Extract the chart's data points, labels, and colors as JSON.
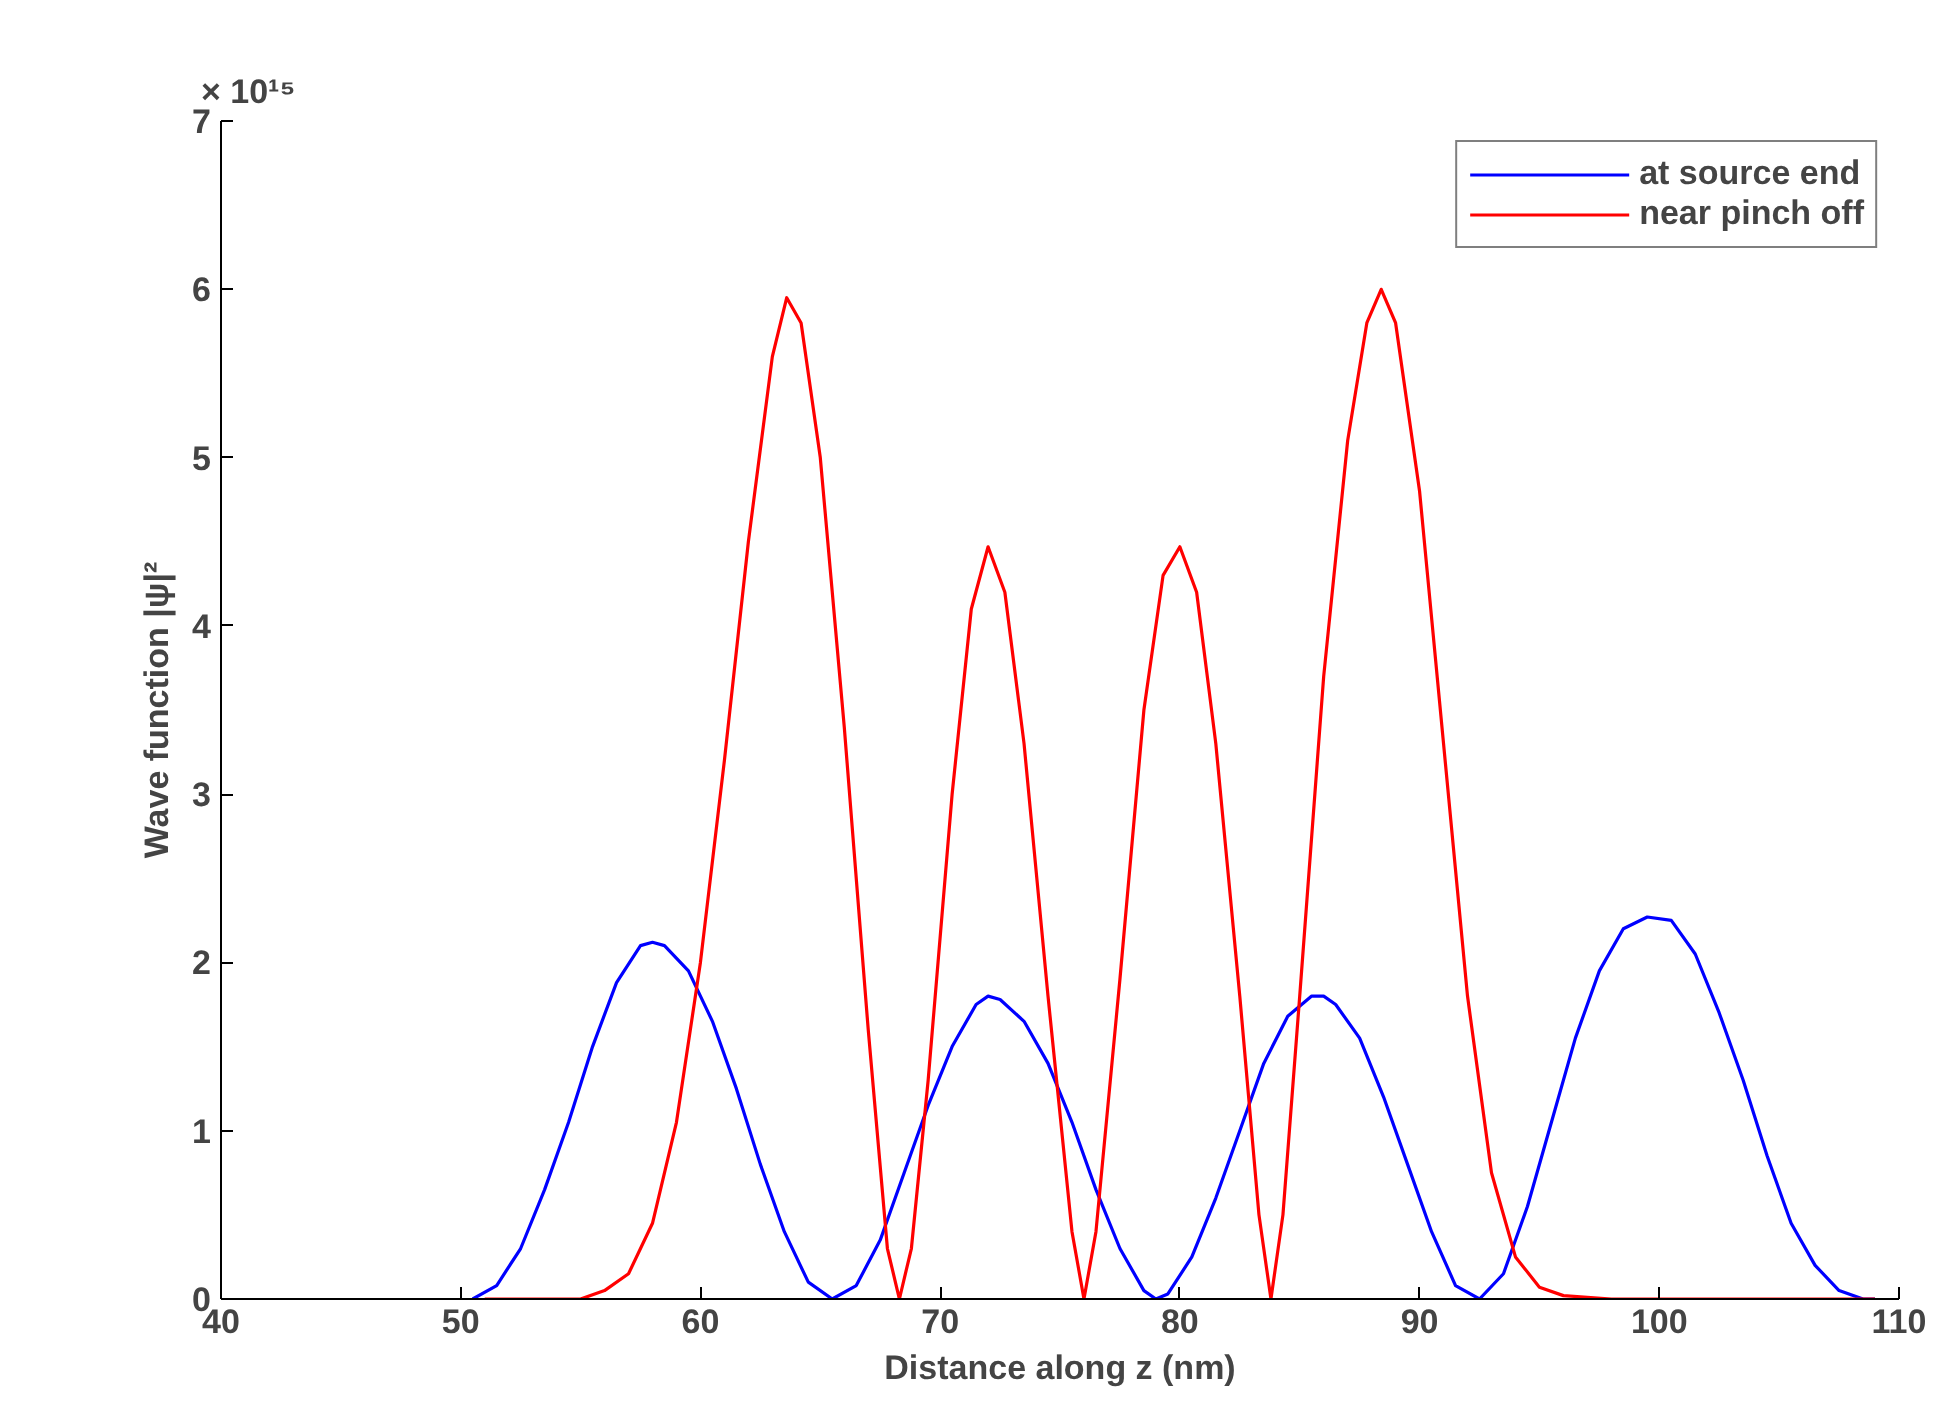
{
  "chart_data": {
    "type": "line",
    "xlabel": "Distance along z (nm)",
    "ylabel": "Wave function |ψ|²",
    "annotations": [
      "× 10¹⁵"
    ],
    "xlim": [
      40,
      110
    ],
    "xticks": [
      40,
      50,
      60,
      70,
      80,
      90,
      100,
      110
    ],
    "ylim": [
      0,
      7
    ],
    "yticks": [
      0,
      1,
      2,
      3,
      4,
      5,
      6,
      7
    ],
    "grid": false,
    "legend": "top right",
    "marker": "none",
    "line_style": "solid",
    "series": [
      {
        "name": "at source end",
        "color": "#0000ff",
        "x": [
          50.5,
          51.5,
          52.5,
          53.5,
          54.5,
          55.5,
          56.5,
          57.5,
          58,
          58.5,
          59.5,
          60.5,
          61.5,
          62.5,
          63.5,
          64.5,
          65.5,
          66.5,
          67.5,
          68.5,
          69.5,
          70.5,
          71.5,
          72,
          72.5,
          73.5,
          74.5,
          75.5,
          76.5,
          77.5,
          78.5,
          79,
          79.5,
          80.5,
          81.5,
          82.5,
          83.5,
          84.5,
          85.5,
          86,
          86.5,
          87.5,
          88.5,
          89.5,
          90.5,
          91.5,
          92.5,
          93.5,
          94.5,
          95.5,
          96.5,
          97.5,
          98.5,
          99.5,
          100.5,
          101.5,
          102.5,
          103.5,
          104.5,
          105.5,
          106.5,
          107.5,
          108.5,
          109
        ],
        "values": [
          0,
          0.08,
          0.3,
          0.65,
          1.05,
          1.5,
          1.88,
          2.1,
          2.12,
          2.1,
          1.95,
          1.65,
          1.25,
          0.8,
          0.4,
          0.1,
          0,
          0.08,
          0.35,
          0.75,
          1.15,
          1.5,
          1.75,
          1.8,
          1.78,
          1.65,
          1.4,
          1.05,
          0.65,
          0.3,
          0.05,
          0,
          0.03,
          0.25,
          0.6,
          1.0,
          1.4,
          1.68,
          1.8,
          1.8,
          1.75,
          1.55,
          1.2,
          0.8,
          0.4,
          0.08,
          0,
          0.15,
          0.55,
          1.05,
          1.55,
          1.95,
          2.2,
          2.27,
          2.25,
          2.05,
          1.7,
          1.3,
          0.85,
          0.45,
          0.2,
          0.05,
          0,
          0
        ]
      },
      {
        "name": "near pinch off",
        "color": "#ff0000",
        "x": [
          51,
          55,
          56,
          57,
          58,
          59,
          60,
          61,
          62,
          63,
          63.6,
          64.2,
          65,
          66,
          67,
          67.8,
          68.3,
          68.8,
          69.5,
          70.5,
          71.3,
          72,
          72.7,
          73.5,
          74.5,
          75.5,
          76,
          76.5,
          77.5,
          78.5,
          79.3,
          80,
          80.7,
          81.5,
          82.5,
          83.3,
          83.8,
          84.3,
          85,
          86,
          87,
          87.8,
          88.4,
          89,
          90,
          91,
          92,
          93,
          94,
          95,
          96,
          98,
          109
        ],
        "values": [
          0,
          0,
          0.05,
          0.15,
          0.45,
          1.05,
          2.0,
          3.2,
          4.5,
          5.6,
          5.95,
          5.8,
          5.0,
          3.4,
          1.6,
          0.3,
          0,
          0.3,
          1.3,
          3.0,
          4.1,
          4.47,
          4.2,
          3.3,
          1.8,
          0.4,
          0,
          0.4,
          1.9,
          3.5,
          4.3,
          4.47,
          4.2,
          3.3,
          1.8,
          0.5,
          0,
          0.5,
          1.8,
          3.7,
          5.1,
          5.8,
          6.0,
          5.8,
          4.8,
          3.3,
          1.8,
          0.75,
          0.25,
          0.07,
          0.02,
          0,
          0
        ]
      }
    ]
  }
}
